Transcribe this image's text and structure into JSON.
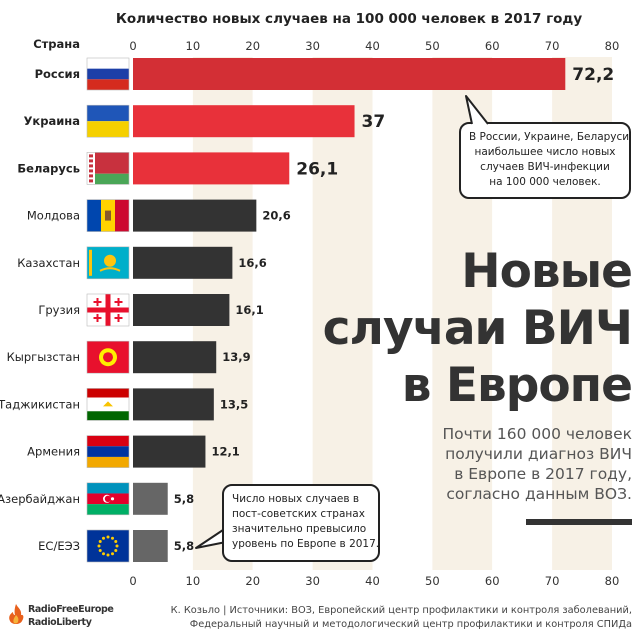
{
  "chart_data": {
    "type": "bar",
    "orientation": "horizontal",
    "title": "Количество новых случаев на 100 000 человек в 2017 году",
    "category_header": "Страна",
    "categories": [
      "Россия",
      "Украина",
      "Беларусь",
      "Молдова",
      "Казахстан",
      "Грузия",
      "Кыргызстан",
      "Таджикистан",
      "Армения",
      "Азербайджан",
      "ЕС/ЕЭЗ"
    ],
    "values": [
      72.2,
      37,
      26.1,
      20.6,
      16.6,
      16.1,
      13.9,
      13.5,
      12.1,
      5.8,
      5.8
    ],
    "value_labels": [
      "72,2",
      "37",
      "26,1",
      "20,6",
      "16,6",
      "16,1",
      "13,9",
      "13,5",
      "12,1",
      "5,8",
      "5,8"
    ],
    "bold_labels": [
      true,
      true,
      true,
      false,
      false,
      false,
      false,
      false,
      false,
      false,
      false
    ],
    "bar_colors": [
      "#d32f35",
      "#e8313a",
      "#e8313a",
      "#333333",
      "#333333",
      "#333333",
      "#333333",
      "#333333",
      "#333333",
      "#666666",
      "#666666"
    ],
    "ticks": [
      "0",
      "10",
      "20",
      "30",
      "40",
      "50",
      "60",
      "70",
      "80"
    ],
    "xlim": [
      0,
      80
    ],
    "grid": "alternating vertical bands"
  },
  "headline": {
    "lines": [
      "Новые",
      "случаи ВИЧ",
      "в Европе"
    ]
  },
  "subtitle": {
    "lines": [
      "Почти 160 000 человек",
      "получили диагноз ВИЧ",
      "в Европе в 2017 году,",
      "согласно данным ВОЗ."
    ]
  },
  "callouts": {
    "top": [
      "В России, Украине, Беларуси",
      "наибольшее число новых",
      "случаев ВИЧ-инфекции",
      "на 100 000 человек."
    ],
    "bottom": [
      "Число новых случаев в",
      "пост-советских странах",
      "значительно превысило",
      "уровень по Европе в 2017."
    ]
  },
  "logo": {
    "lines": [
      "RadioFreeEurope",
      "RadioLiberty"
    ]
  },
  "source": {
    "lines": [
      "К. Козьло | Источники: ВОЗ, Европейский центр профилактики и контроля заболеваний,",
      "Федеральный научный и методологический центр профилактики и контроля СПИДа"
    ]
  },
  "flags": [
    "russia-flag",
    "ukraine-flag",
    "belarus-flag",
    "moldova-flag",
    "kazakhstan-flag",
    "georgia-flag",
    "kyrgyzstan-flag",
    "tajikistan-flag",
    "armenia-flag",
    "azerbaijan-flag",
    "eu-flag"
  ],
  "colors": {
    "band": "#f7f1e6",
    "dark_bar": "#333333",
    "red_bar": "#e8313a",
    "grey_bar": "#666666"
  }
}
